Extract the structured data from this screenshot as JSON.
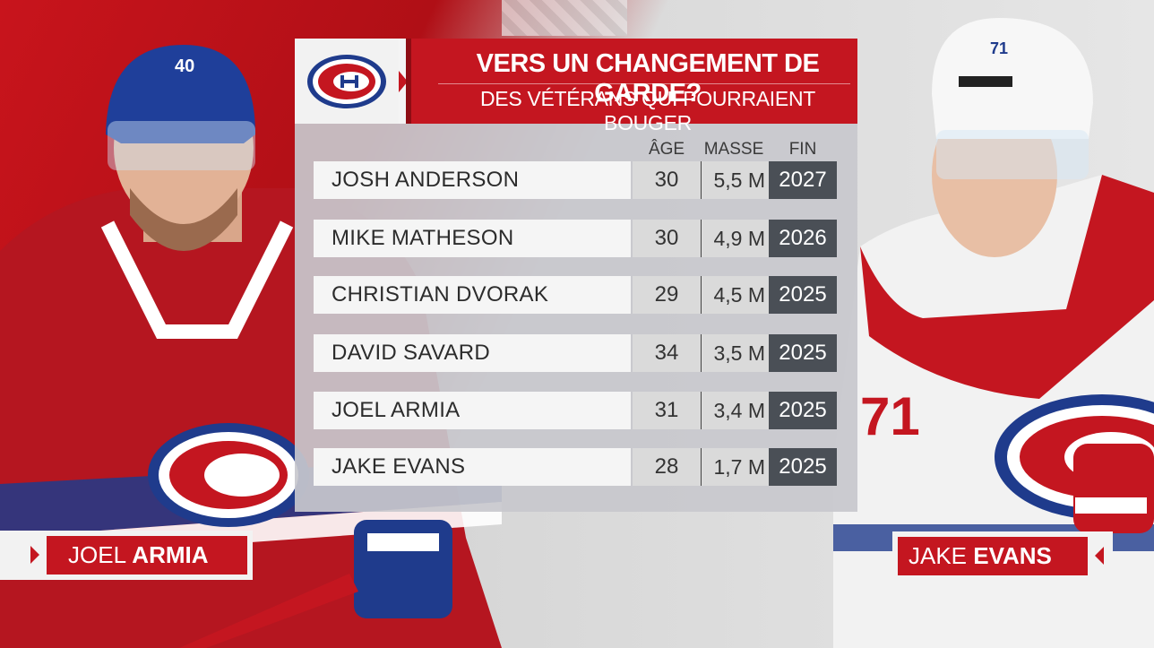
{
  "header": {
    "title": "VERS UN CHANGEMENT DE GARDE?",
    "subtitle": "DES VÉTÉRANS QUI POURRAIENT BOUGER",
    "logo": "canadiens-logo"
  },
  "columns": {
    "age": "ÂGE",
    "mass": "MASSE",
    "fin": "FIN"
  },
  "rows": [
    {
      "name": "JOSH ANDERSON",
      "age": "30",
      "mass": "5,5 M",
      "fin": "2027"
    },
    {
      "name": "MIKE MATHESON",
      "age": "30",
      "mass": "4,9 M",
      "fin": "2026"
    },
    {
      "name": "CHRISTIAN DVORAK",
      "age": "29",
      "mass": "4,5 M",
      "fin": "2025"
    },
    {
      "name": "DAVID SAVARD",
      "age": "34",
      "mass": "3,5 M",
      "fin": "2025"
    },
    {
      "name": "JOEL ARMIA",
      "age": "31",
      "mass": "3,4 M",
      "fin": "2025"
    },
    {
      "name": "JAKE EVANS",
      "age": "28",
      "mass": "1,7 M",
      "fin": "2025"
    }
  ],
  "players": {
    "left": {
      "first": "JOEL",
      "last": "ARMIA",
      "number": "40"
    },
    "right": {
      "first": "JAKE",
      "last": "EVANS",
      "number": "71"
    }
  },
  "colors": {
    "red": "#c41620",
    "dark": "#4a4f56",
    "blue": "#1e3a8a"
  }
}
